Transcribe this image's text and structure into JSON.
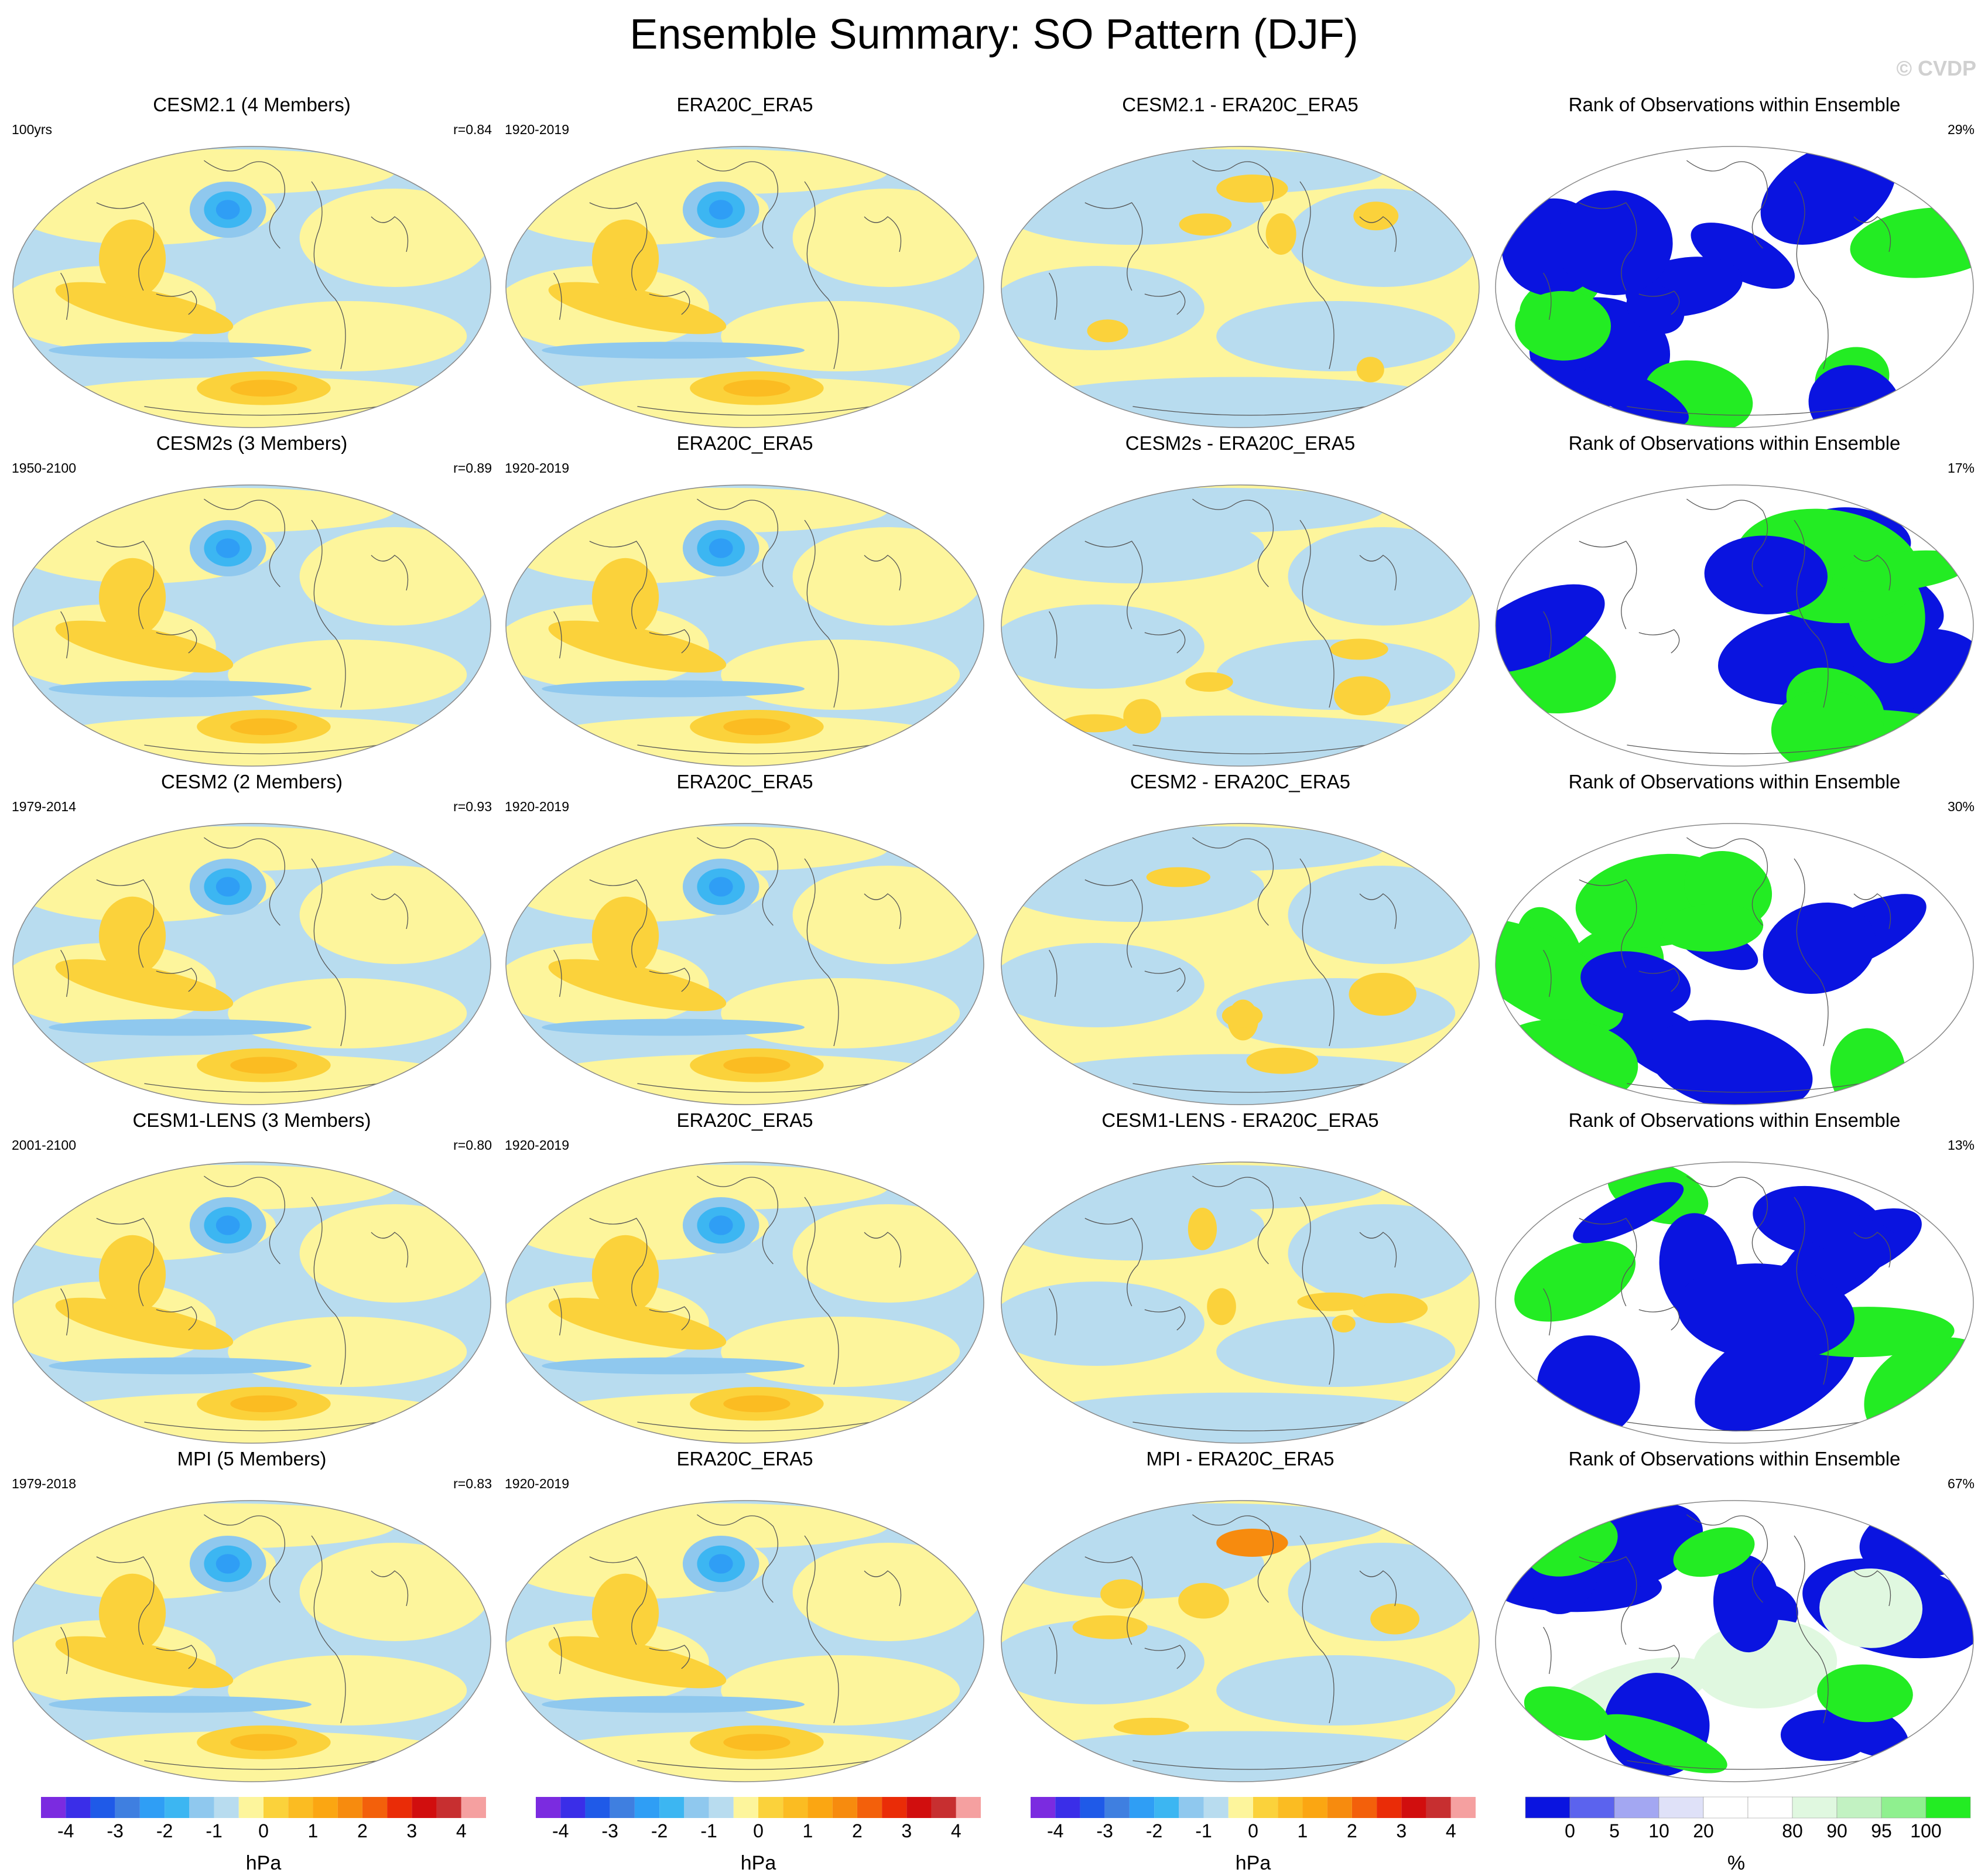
{
  "title": "Ensemble Summary: SO Pattern (DJF)",
  "copyright": "© CVDP",
  "rows": [
    {
      "model": {
        "title": "CESM2.1 (4 Members)",
        "years": "100yrs",
        "corr": "r=0.84"
      },
      "obs": {
        "title": "ERA20C_ERA5",
        "years": "1920-2019"
      },
      "diff": {
        "title": "CESM2.1 - ERA20C_ERA5"
      },
      "rank": {
        "title": "Rank of Observations within Ensemble",
        "pct": "29%"
      }
    },
    {
      "model": {
        "title": "CESM2s (3 Members)",
        "years": "1950-2100",
        "corr": "r=0.89"
      },
      "obs": {
        "title": "ERA20C_ERA5",
        "years": "1920-2019"
      },
      "diff": {
        "title": "CESM2s - ERA20C_ERA5"
      },
      "rank": {
        "title": "Rank of Observations within Ensemble",
        "pct": "17%"
      }
    },
    {
      "model": {
        "title": "CESM2 (2 Members)",
        "years": "1979-2014",
        "corr": "r=0.93"
      },
      "obs": {
        "title": "ERA20C_ERA5",
        "years": "1920-2019"
      },
      "diff": {
        "title": "CESM2 - ERA20C_ERA5"
      },
      "rank": {
        "title": "Rank of Observations within Ensemble",
        "pct": "30%"
      }
    },
    {
      "model": {
        "title": "CESM1-LENS (3 Members)",
        "years": "2001-2100",
        "corr": "r=0.80"
      },
      "obs": {
        "title": "ERA20C_ERA5",
        "years": "1920-2019"
      },
      "diff": {
        "title": "CESM1-LENS - ERA20C_ERA5"
      },
      "rank": {
        "title": "Rank of Observations within Ensemble",
        "pct": "13%"
      }
    },
    {
      "model": {
        "title": "MPI (5 Members)",
        "years": "1979-2018",
        "corr": "r=0.83"
      },
      "obs": {
        "title": "ERA20C_ERA5",
        "years": "1920-2019"
      },
      "diff": {
        "title": "MPI - ERA20C_ERA5"
      },
      "rank": {
        "title": "Rank of Observations within Ensemble",
        "pct": "67%"
      }
    }
  ],
  "colorbars": {
    "hpa": {
      "unit": "hPa",
      "colors": [
        "#7b2be0",
        "#3a2ee8",
        "#1f5ae8",
        "#3f7fe0",
        "#2f9ef5",
        "#3cb6f2",
        "#8fc8ee",
        "#b8dcef",
        "#fdf59c",
        "#fbd23b",
        "#fbbc22",
        "#fba612",
        "#f78b0e",
        "#f3600b",
        "#ea2c07",
        "#d10e0e",
        "#c72f30",
        "#f5a0a0"
      ],
      "ticks": [
        "-4",
        "-3",
        "-2",
        "-1",
        "0",
        "1",
        "2",
        "3",
        "4"
      ]
    },
    "rank": {
      "unit": "%",
      "colors": [
        "#0a14e0",
        "#5b63ee",
        "#a3a7f2",
        "#dfe1f8",
        "#ffffff",
        "#ffffff",
        "#e0f8e0",
        "#c2f2c2",
        "#8ff08f",
        "#23ec23"
      ],
      "ticks": [
        "0",
        "5",
        "10",
        "20",
        "80",
        "90",
        "95",
        "100"
      ]
    }
  }
}
